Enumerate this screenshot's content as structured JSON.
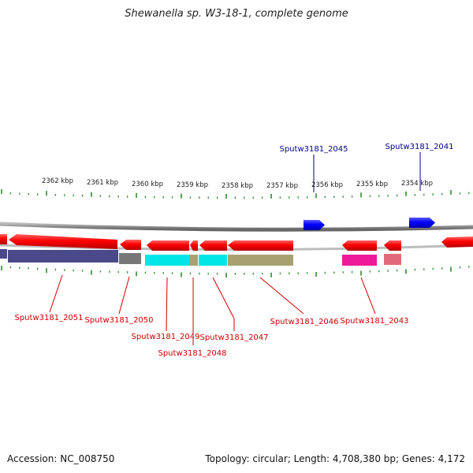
{
  "title": "Shewanella sp. W3-18-1, complete genome",
  "footer": {
    "accession": "Accession: NC_008750",
    "summary": "Topology: circular; Length: 4,708,380 bp; Genes: 4,172"
  },
  "scale_ticks": [
    "2362 kbp",
    "2361 kbp",
    "2360 kbp",
    "2359 kbp",
    "2358 kbp",
    "2357 kbp",
    "2356 kbp",
    "2355 kbp",
    "2354 kbp"
  ],
  "top_labels": [
    "Sputw3181_2045",
    "Sputw3181_2041"
  ],
  "bottom_labels": [
    "Sputw3181_2051",
    "Sputw3181_2050",
    "Sputw3181_2049",
    "Sputw3181_2048",
    "Sputw3181_2047",
    "Sputw3181_2046",
    "Sputw3181_2043"
  ],
  "colors": {
    "forward_gene": "#0000ee",
    "reverse_gene": "#ee0000",
    "label_forward": "#00008b",
    "label_reverse": "#cc0000",
    "tick": "#2e8b2e",
    "backbone": "#888888"
  }
}
